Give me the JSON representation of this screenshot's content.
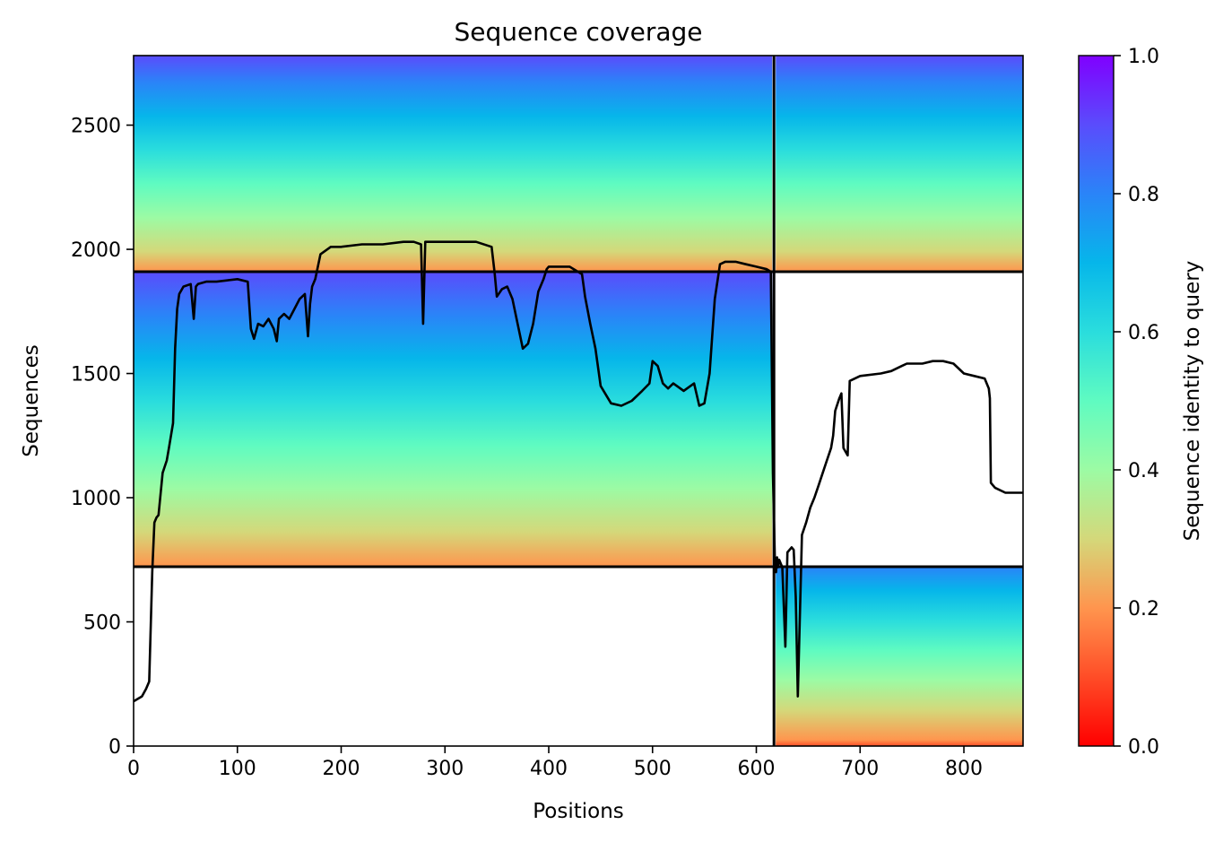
{
  "chart_data": {
    "type": "heatmap",
    "title": "Sequence coverage",
    "xlabel": "Positions",
    "ylabel": "Sequences",
    "xlim": [
      0,
      857
    ],
    "ylim": [
      0,
      2780
    ],
    "xticks": [
      0,
      100,
      200,
      300,
      400,
      500,
      600,
      700,
      800
    ],
    "yticks": [
      0,
      500,
      1000,
      1500,
      2000,
      2500
    ],
    "colorbar": {
      "label": "Sequence identity to query",
      "range": [
        0,
        1
      ],
      "ticks": [
        "0.0",
        "0.2",
        "0.4",
        "0.6",
        "0.8",
        "1.0"
      ],
      "colormap": "rainbow"
    },
    "chain_boundary_x": 617,
    "row_boundaries_y": [
      722,
      1910
    ],
    "blocks": [
      {
        "rows": [
          1910,
          2780
        ],
        "cols": [
          0,
          617
        ],
        "identity_top": 0.88,
        "identity_bottom": 0.24
      },
      {
        "rows": [
          1910,
          2780
        ],
        "cols": [
          617,
          857
        ],
        "identity_top": 0.88,
        "identity_bottom": 0.24
      },
      {
        "rows": [
          722,
          1910
        ],
        "cols": [
          0,
          617
        ],
        "identity_top": 0.9,
        "identity_bottom": 0.22
      },
      {
        "rows": [
          0,
          722
        ],
        "cols": [
          617,
          857
        ],
        "identity_top": 0.78,
        "identity_bottom": 0.18
      }
    ],
    "coverage_line": {
      "color": "#000000",
      "x": [
        0,
        8,
        12,
        15,
        18,
        20,
        22,
        24,
        28,
        32,
        34,
        38,
        40,
        42,
        44,
        48,
        55,
        58,
        60,
        62,
        70,
        80,
        90,
        100,
        110,
        113,
        116,
        120,
        125,
        130,
        135,
        138,
        140,
        145,
        150,
        155,
        160,
        165,
        168,
        170,
        172,
        175,
        180,
        190,
        200,
        220,
        240,
        260,
        270,
        277,
        279,
        281,
        290,
        310,
        330,
        345,
        348,
        350,
        355,
        360,
        365,
        370,
        375,
        380,
        385,
        390,
        395,
        398,
        400,
        420,
        432,
        435,
        440,
        445,
        450,
        460,
        470,
        480,
        490,
        497,
        500,
        505,
        510,
        515,
        520,
        530,
        540,
        545,
        550,
        555,
        560,
        565,
        570,
        580,
        590,
        600,
        610,
        614,
        616,
        618,
        619,
        620,
        621,
        622,
        625,
        628,
        630,
        634,
        636,
        638,
        640,
        644,
        648,
        652,
        656,
        660,
        664,
        668,
        672,
        674,
        676,
        680,
        682,
        684,
        688,
        690,
        700,
        720,
        730,
        740,
        745,
        750,
        760,
        770,
        780,
        790,
        800,
        810,
        820,
        824,
        825,
        826,
        828,
        830,
        840,
        850,
        857
      ],
      "y": [
        180,
        200,
        230,
        260,
        700,
        900,
        920,
        930,
        1100,
        1150,
        1200,
        1300,
        1600,
        1760,
        1820,
        1850,
        1860,
        1720,
        1850,
        1860,
        1870,
        1870,
        1875,
        1880,
        1870,
        1680,
        1640,
        1700,
        1690,
        1720,
        1680,
        1630,
        1720,
        1740,
        1720,
        1760,
        1800,
        1820,
        1650,
        1780,
        1850,
        1880,
        1980,
        2010,
        2010,
        2020,
        2020,
        2030,
        2030,
        2020,
        1700,
        2030,
        2030,
        2030,
        2030,
        2010,
        1900,
        1810,
        1840,
        1850,
        1800,
        1700,
        1600,
        1620,
        1700,
        1830,
        1880,
        1920,
        1930,
        1930,
        1900,
        1810,
        1700,
        1600,
        1450,
        1380,
        1370,
        1390,
        1430,
        1460,
        1550,
        1530,
        1460,
        1440,
        1460,
        1430,
        1460,
        1370,
        1380,
        1500,
        1800,
        1940,
        1950,
        1950,
        1940,
        1930,
        1920,
        1910,
        1100,
        720,
        700,
        760,
        720,
        750,
        720,
        400,
        780,
        800,
        790,
        600,
        200,
        850,
        900,
        960,
        1000,
        1050,
        1100,
        1150,
        1200,
        1250,
        1350,
        1400,
        1420,
        1200,
        1170,
        1470,
        1490,
        1500,
        1510,
        1530,
        1540,
        1540,
        1540,
        1550,
        1550,
        1540,
        1500,
        1490,
        1480,
        1440,
        1400,
        1060,
        1050,
        1040,
        1020,
        1020,
        1020
      ]
    }
  }
}
